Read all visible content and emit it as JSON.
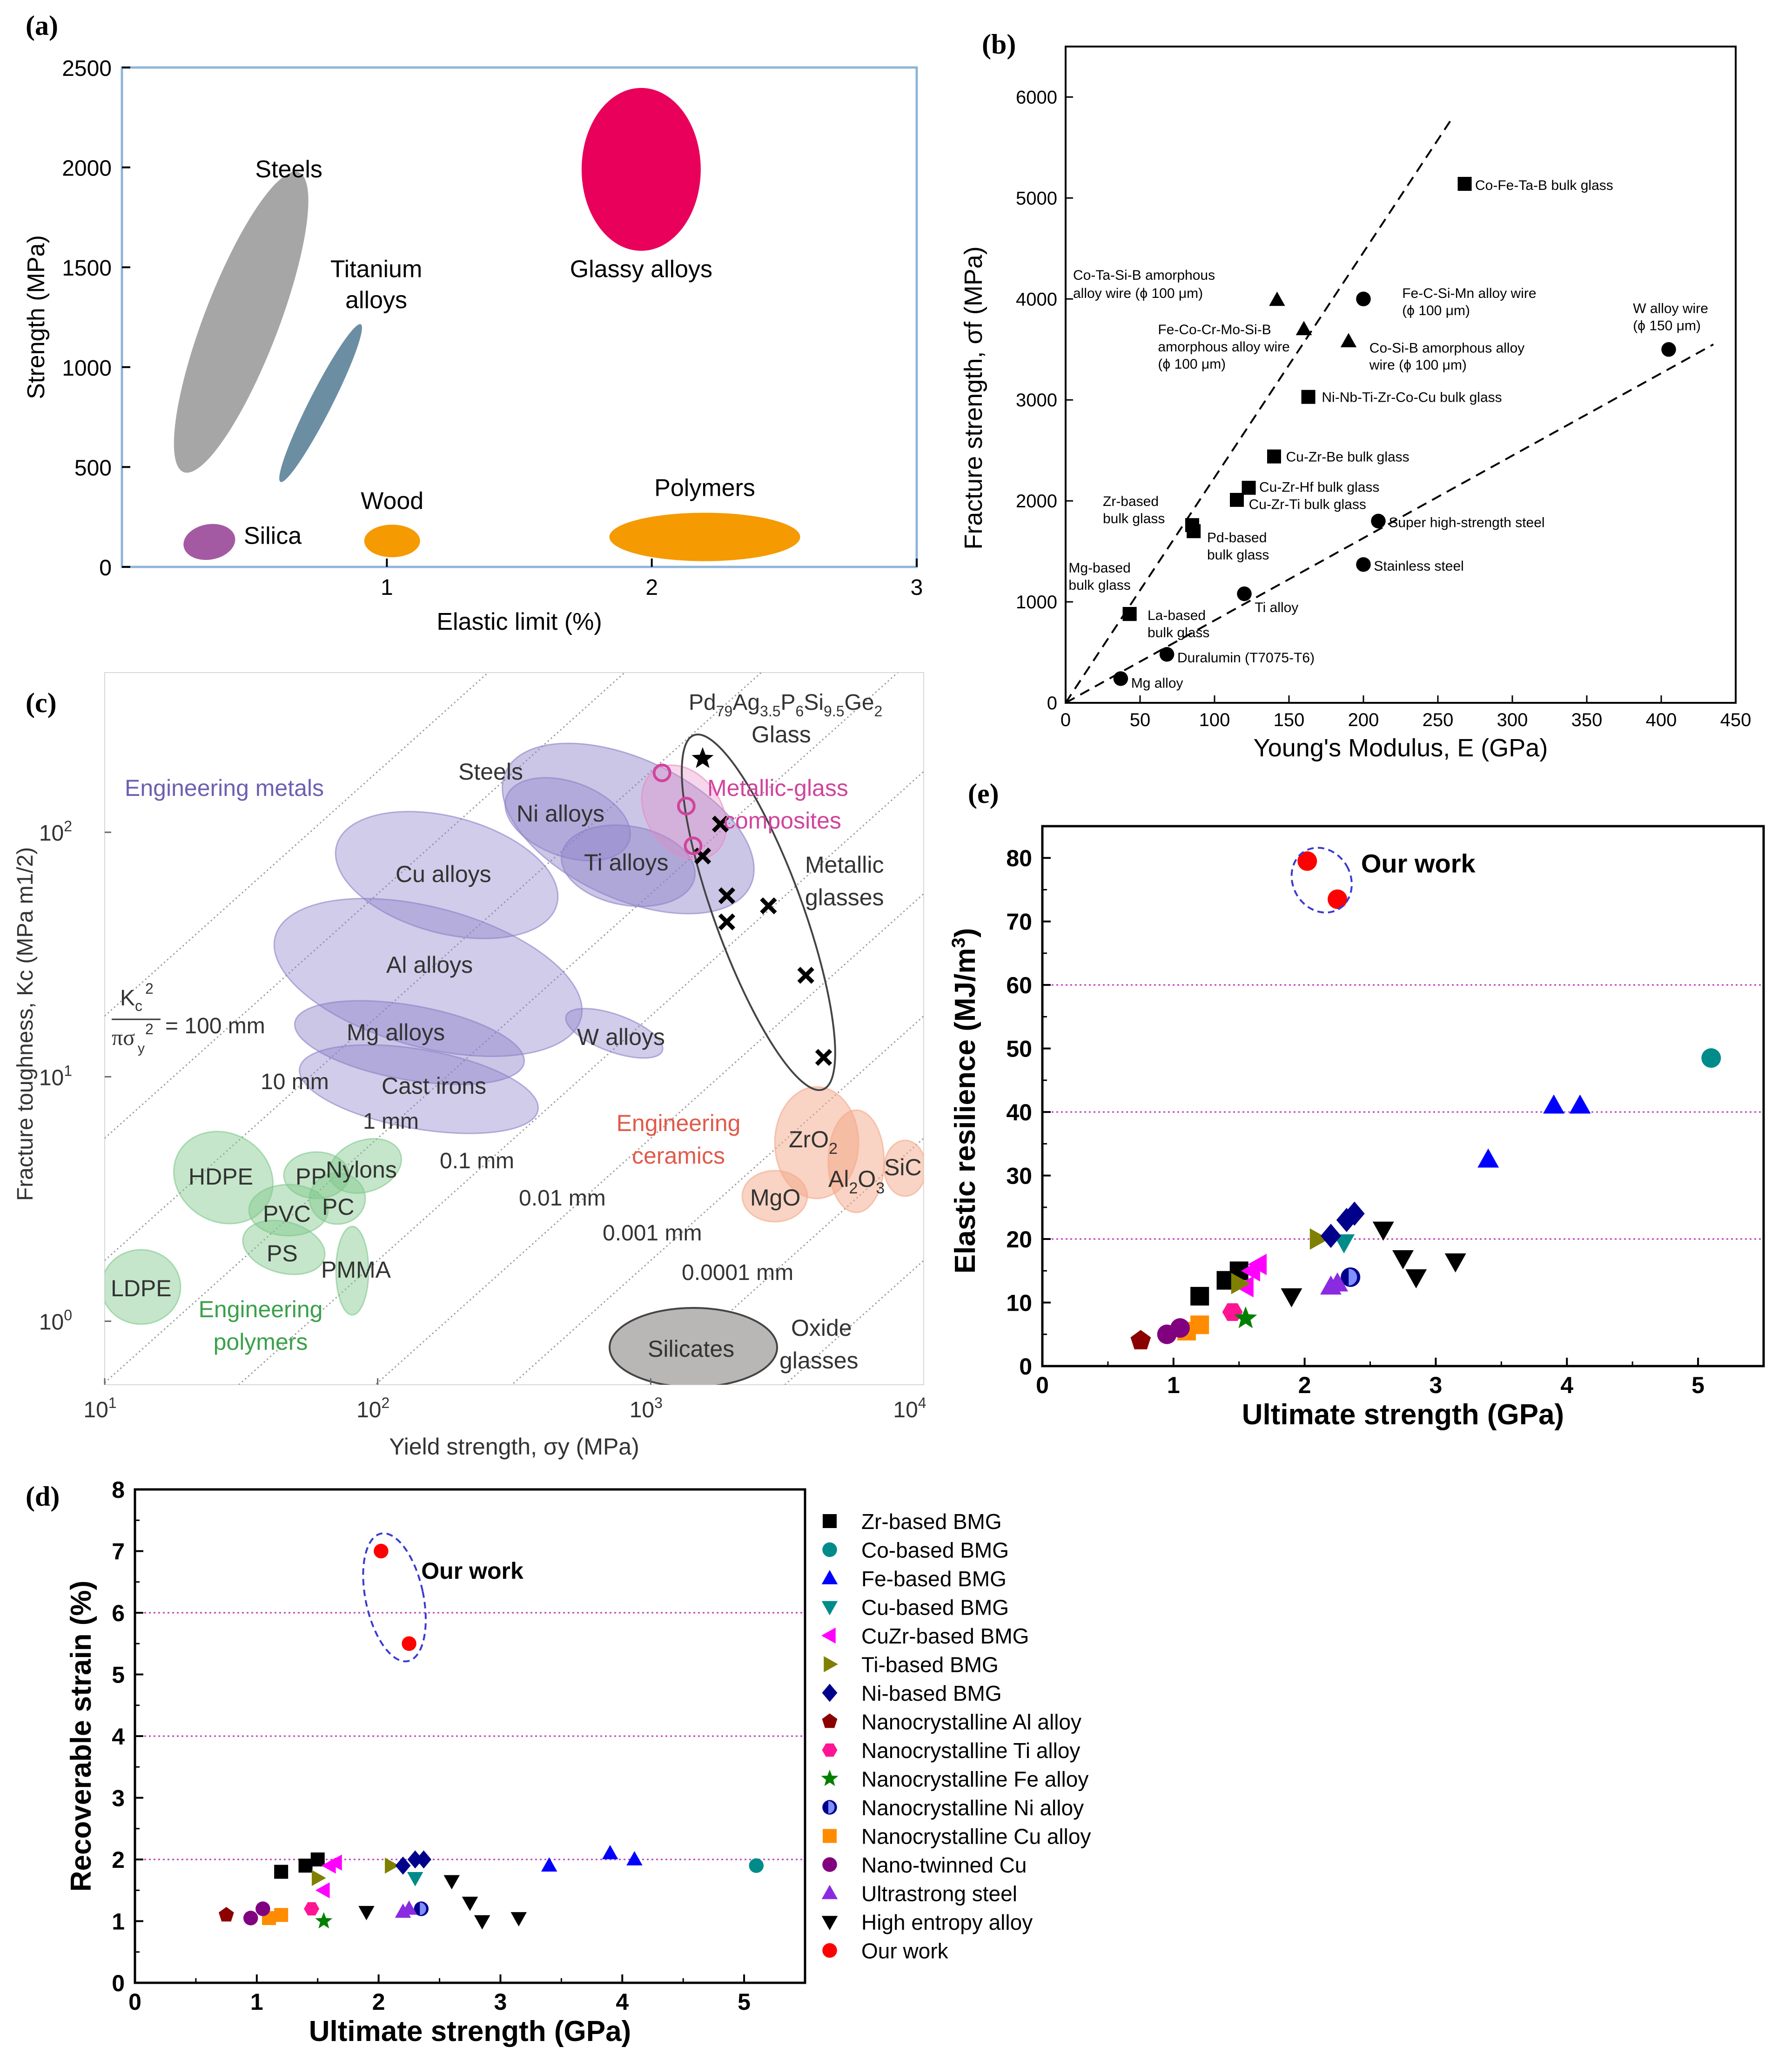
{
  "chart_data": [
    {
      "panel": "a",
      "panel_label": "(a)",
      "type": "region",
      "xlabel": "Elastic limit (%)",
      "ylabel": "Strength (MPa)",
      "xlim": [
        0,
        3
      ],
      "ylim": [
        0,
        2500
      ],
      "xticks": [
        "1",
        "2",
        "3"
      ],
      "x_origin_label": "0",
      "yticks": [
        "0",
        "500",
        "1000",
        "1500",
        "2000",
        "2500"
      ],
      "colors": {
        "frame": "#8fb4d8",
        "steels": "#a6a6a6",
        "titanium": "#6b8ea3",
        "glassy": "#e8005a",
        "silica": "#a45aa2",
        "wood": "#f59a00",
        "polymers": "#f59a00"
      },
      "regions": [
        {
          "name": "Steels",
          "label": "Steels",
          "center": [
            0.45,
            1225
          ],
          "rx_frac": 0.4,
          "color": "#a6a6a6"
        },
        {
          "name": "Titanium alloys",
          "label_line1": "Titanium",
          "label_line2": "alloys",
          "center": [
            0.75,
            820
          ],
          "color": "#6b8ea3"
        },
        {
          "name": "Glassy alloys",
          "label": "Glassy alloys",
          "center": [
            2.0,
            1990
          ],
          "color": "#e8005a"
        },
        {
          "name": "Silica",
          "label": "Silica",
          "center": [
            0.33,
            125
          ],
          "color": "#a45aa2"
        },
        {
          "name": "Wood",
          "label": "Wood",
          "center": [
            1.02,
            130
          ],
          "color": "#f59a00"
        },
        {
          "name": "Polymers",
          "label": "Polymers",
          "center": [
            2.2,
            150
          ],
          "color": "#f59a00"
        }
      ]
    },
    {
      "panel": "b",
      "panel_label": "(b)",
      "type": "scatter",
      "xlabel": "Young's Modulus, E (GPa)",
      "ylabel": "Fracture strength, σf (MPa)",
      "xlim": [
        0,
        450
      ],
      "ylim": [
        0,
        6500
      ],
      "xticks": [
        "0",
        "50",
        "100",
        "150",
        "200",
        "250",
        "300",
        "350",
        "400",
        "450"
      ],
      "yticks": [
        "0",
        "1000",
        "2000",
        "3000",
        "4000",
        "5000",
        "6000"
      ],
      "fit_lines": [
        {
          "x": [
            0,
            260
          ],
          "y": [
            0,
            5800
          ]
        },
        {
          "x": [
            0,
            435
          ],
          "y": [
            0,
            3550
          ]
        }
      ],
      "points": [
        {
          "x": 268,
          "y": 5140,
          "marker": "square",
          "label": "Co-Fe-Ta-B bulk glass"
        },
        {
          "x": 142,
          "y": 3990,
          "marker": "triangle",
          "label": "Co-Ta-Si-B amorphous alloy wire (ϕ 100 μm)"
        },
        {
          "x": 160,
          "y": 3700,
          "marker": "triangle",
          "label": "Fe-Co-Cr-Mo-Si-B amorphous alloy wire (ϕ 100 μm)"
        },
        {
          "x": 190,
          "y": 3580,
          "marker": "triangle",
          "label": ""
        },
        {
          "x": 200,
          "y": 4000,
          "marker": "circle",
          "label": "Fe-C-Si-Mn alloy wire (ϕ 100 μm)"
        },
        {
          "x": 405,
          "y": 3500,
          "marker": "circle",
          "label": "W alloy wire (ϕ 150 μm)"
        },
        {
          "x": 163,
          "y": 3030,
          "marker": "square",
          "label": "Ni-Nb-Ti-Zr-Co-Cu bulk glass"
        },
        {
          "x": 140,
          "y": 2440,
          "marker": "square",
          "label": "Cu-Zr-Be bulk glass"
        },
        {
          "x": 123,
          "y": 2130,
          "marker": "square",
          "label": "Cu-Zr-Hf bulk glass"
        },
        {
          "x": 115,
          "y": 2010,
          "marker": "square",
          "label": "Cu-Zr-Ti bulk glass"
        },
        {
          "x": 85,
          "y": 1760,
          "marker": "square",
          "label": "Zr-based bulk glass"
        },
        {
          "x": 86,
          "y": 1700,
          "marker": "square",
          "label": "Pd-based bulk glass"
        },
        {
          "x": 210,
          "y": 1800,
          "marker": "circle",
          "label": "Super high-strength steel"
        },
        {
          "x": 200,
          "y": 1370,
          "marker": "circle",
          "label": "Stainless steel"
        },
        {
          "x": 120,
          "y": 1080,
          "marker": "circle",
          "label": "Ti alloy"
        },
        {
          "x": 43,
          "y": 880,
          "marker": "square",
          "label": "Mg-based bulk glass"
        },
        {
          "x": 43,
          "y": 880,
          "marker": "square",
          "label": "La-based bulk glass"
        },
        {
          "x": 68,
          "y": 480,
          "marker": "circle",
          "label": "Duralumin (T7075-T6)"
        },
        {
          "x": 37,
          "y": 240,
          "marker": "circle",
          "label": "Mg alloy"
        }
      ],
      "extra_labels": [
        "Co-Si-B amorphous alloy wire (ϕ 100 μm)"
      ]
    },
    {
      "panel": "c",
      "panel_label": "(c)",
      "type": "ashby",
      "xlabel": "Yield strength, σy (MPa)",
      "ylabel": "Fracture toughness, Kc (MPa m1/2)",
      "xscale": "log",
      "yscale": "log",
      "xlim": [
        10,
        10000
      ],
      "ylim": [
        0.55,
        450
      ],
      "xticks": [
        "10",
        "100",
        "1000",
        "10000"
      ],
      "yticks": [
        "1",
        "10",
        "100"
      ],
      "guide_labels": [
        "= 100 mm",
        "10 mm",
        "1 mm",
        "0.1 mm",
        "0.01 mm",
        "0.001 mm",
        "0.0001 mm"
      ],
      "group_labels": {
        "metals": "Engineering metals",
        "polymers_line1": "Engineering",
        "polymers_line2": "polymers",
        "ceramics_line1": "Engineering",
        "ceramics_line2": "ceramics",
        "composites_line1": "Metallic-glass",
        "composites_line2": "composites",
        "mg_line1": "Metallic",
        "mg_line2": "glasses",
        "oxide_line1": "Oxide",
        "oxide_line2": "glasses",
        "pd_formula": "Pd79Ag3.5P6Si9.5Ge2",
        "pd_line2": "Glass"
      },
      "materials": [
        "Steels",
        "Ni alloys",
        "Ti alloys",
        "Cu alloys",
        "Al alloys",
        "Mg alloys",
        "Cast irons",
        "W alloys",
        "HDPE",
        "PP",
        "Nylons",
        "PVC",
        "PC",
        "PS",
        "PMMA",
        "LDPE",
        "ZrO2",
        "MgO",
        "Al2O3",
        "SiC",
        "Silicates"
      ],
      "metallic_glass_points": [
        {
          "sy": 1800,
          "kc": 108
        },
        {
          "sy": 1550,
          "kc": 80
        },
        {
          "sy": 1900,
          "kc": 55
        },
        {
          "sy": 1900,
          "kc": 43
        },
        {
          "sy": 2700,
          "kc": 50
        },
        {
          "sy": 3700,
          "kc": 26
        },
        {
          "sy": 4300,
          "kc": 12
        }
      ],
      "pd_glass_point": {
        "sy": 1550,
        "kc": 200
      },
      "composite_points": [
        {
          "sy": 1100,
          "kc": 175
        },
        {
          "sy": 1350,
          "kc": 128
        },
        {
          "sy": 1430,
          "kc": 88
        }
      ],
      "colors": {
        "metals": "#6d5fb1",
        "polymers": "#3aa04a",
        "ceramics": "#e05a4a",
        "composites": "#d0449c"
      }
    },
    {
      "panel": "d",
      "panel_label": "(d)",
      "type": "scatter",
      "xlabel": "Ultimate strength (GPa)",
      "ylabel": "Recoverable strain (%)",
      "xlim": [
        0,
        5.5
      ],
      "ylim": [
        0,
        8
      ],
      "xticks": [
        "0",
        "1",
        "2",
        "3",
        "4",
        "5"
      ],
      "yticks": [
        "0",
        "1",
        "2",
        "3",
        "4",
        "5",
        "6",
        "7",
        "8"
      ],
      "reference_lines": [
        2,
        4,
        6
      ],
      "annotation": "Our work",
      "series": [
        {
          "name": "Zr-based BMG",
          "marker": "square",
          "color": "#000000",
          "points": [
            [
              1.2,
              1.8
            ],
            [
              1.4,
              1.9
            ],
            [
              1.5,
              2.0
            ]
          ]
        },
        {
          "name": "Co-based BMG",
          "marker": "circle",
          "color": "#008b8b",
          "points": [
            [
              5.1,
              1.9
            ]
          ]
        },
        {
          "name": "Fe-based BMG",
          "marker": "tri-up",
          "color": "#0000ff",
          "points": [
            [
              3.4,
              1.9
            ],
            [
              3.9,
              2.1
            ],
            [
              4.1,
              2.0
            ]
          ]
        },
        {
          "name": "Cu-based BMG",
          "marker": "tri-down",
          "color": "#008b8b",
          "points": [
            [
              2.3,
              1.7
            ]
          ]
        },
        {
          "name": "CuZr-based BMG",
          "marker": "tri-left",
          "color": "#ff00ff",
          "points": [
            [
              1.6,
              1.9
            ],
            [
              1.65,
              1.95
            ],
            [
              1.55,
              1.5
            ]
          ]
        },
        {
          "name": "Ti-based BMG",
          "marker": "tri-right",
          "color": "#808000",
          "points": [
            [
              2.1,
              1.9
            ],
            [
              1.5,
              1.7
            ]
          ]
        },
        {
          "name": "Ni-based BMG",
          "marker": "diamond",
          "color": "#00008b",
          "points": [
            [
              2.2,
              1.9
            ],
            [
              2.3,
              2.0
            ],
            [
              2.37,
              2.0
            ]
          ]
        },
        {
          "name": "Nanocrystalline Al alloy",
          "marker": "pentagon",
          "color": "#8b0000",
          "points": [
            [
              0.75,
              1.1
            ]
          ]
        },
        {
          "name": "Nanocrystalline Ti alloy",
          "marker": "hexagon",
          "color": "#ff1493",
          "points": [
            [
              1.45,
              1.2
            ]
          ]
        },
        {
          "name": "Nanocrystalline Fe alloy",
          "marker": "star",
          "color": "#008000",
          "points": [
            [
              1.55,
              1.0
            ]
          ]
        },
        {
          "name": "Nanocrystalline Ni alloy",
          "marker": "half-circle",
          "color": "#00008b",
          "points": [
            [
              2.35,
              1.2
            ]
          ]
        },
        {
          "name": "Nanocrystalline Cu alloy",
          "marker": "square",
          "color": "#ff8c00",
          "points": [
            [
              1.1,
              1.05
            ],
            [
              1.2,
              1.1
            ]
          ]
        },
        {
          "name": "Nano-twinned Cu",
          "marker": "circle",
          "color": "#800080",
          "points": [
            [
              0.95,
              1.05
            ],
            [
              1.05,
              1.2
            ]
          ]
        },
        {
          "name": "Ultrastrong steel",
          "marker": "tri-up",
          "color": "#8a2be2",
          "points": [
            [
              2.2,
              1.15
            ],
            [
              2.25,
              1.2
            ]
          ]
        },
        {
          "name": "High entropy alloy",
          "marker": "tri-down",
          "color": "#000000",
          "points": [
            [
              1.9,
              1.15
            ],
            [
              2.6,
              1.65
            ],
            [
              2.75,
              1.3
            ],
            [
              2.85,
              1.0
            ],
            [
              3.15,
              1.05
            ]
          ]
        },
        {
          "name": "Our work",
          "marker": "circle",
          "color": "#ff0000",
          "points": [
            [
              2.02,
              7.0
            ],
            [
              2.25,
              5.5
            ]
          ]
        }
      ]
    },
    {
      "panel": "e",
      "panel_label": "(e)",
      "type": "scatter",
      "xlabel": "Ultimate strength (GPa)",
      "ylabel": "Elastic resilience (MJ/m3)",
      "xlim": [
        0,
        5.5
      ],
      "ylim": [
        0,
        85
      ],
      "xticks": [
        "0",
        "1",
        "2",
        "3",
        "4",
        "5"
      ],
      "yticks": [
        "0",
        "10",
        "20",
        "30",
        "40",
        "50",
        "60",
        "70",
        "80"
      ],
      "reference_lines": [
        20,
        40,
        60
      ],
      "annotation": "Our work",
      "series": [
        {
          "name": "Zr-based BMG",
          "marker": "square",
          "color": "#000000",
          "points": [
            [
              1.2,
              11
            ],
            [
              1.4,
              13.5
            ],
            [
              1.5,
              15
            ]
          ]
        },
        {
          "name": "Co-based BMG",
          "marker": "circle",
          "color": "#008b8b",
          "points": [
            [
              5.1,
              48.5
            ]
          ]
        },
        {
          "name": "Fe-based BMG",
          "marker": "tri-up",
          "color": "#0000ff",
          "points": [
            [
              3.4,
              32.5
            ],
            [
              3.9,
              41
            ],
            [
              4.1,
              41
            ]
          ]
        },
        {
          "name": "Cu-based BMG",
          "marker": "tri-down",
          "color": "#008b8b",
          "points": [
            [
              2.3,
              19.5
            ]
          ]
        },
        {
          "name": "CuZr-based BMG",
          "marker": "tri-left",
          "color": "#ff00ff",
          "points": [
            [
              1.65,
              16
            ],
            [
              1.6,
              15
            ],
            [
              1.55,
              12.5
            ]
          ]
        },
        {
          "name": "Ti-based BMG",
          "marker": "tri-right",
          "color": "#808000",
          "points": [
            [
              2.1,
              20
            ],
            [
              1.5,
              13
            ]
          ]
        },
        {
          "name": "Ni-based BMG",
          "marker": "diamond",
          "color": "#00008b",
          "points": [
            [
              2.2,
              20.5
            ],
            [
              2.32,
              23
            ],
            [
              2.38,
              24
            ]
          ]
        },
        {
          "name": "Nanocrystalline Al alloy",
          "marker": "pentagon",
          "color": "#8b0000",
          "points": [
            [
              0.75,
              4
            ]
          ]
        },
        {
          "name": "Nanocrystalline Ti alloy",
          "marker": "hexagon",
          "color": "#ff1493",
          "points": [
            [
              1.45,
              8.5
            ]
          ]
        },
        {
          "name": "Nanocrystalline Fe alloy",
          "marker": "star",
          "color": "#008000",
          "points": [
            [
              1.55,
              7.5
            ]
          ]
        },
        {
          "name": "Nanocrystalline Ni alloy",
          "marker": "half-circle",
          "color": "#00008b",
          "points": [
            [
              2.35,
              14
            ]
          ]
        },
        {
          "name": "Nanocrystalline Cu alloy",
          "marker": "square",
          "color": "#ff8c00",
          "points": [
            [
              1.1,
              5.5
            ],
            [
              1.2,
              6.5
            ]
          ]
        },
        {
          "name": "Nano-twinned Cu",
          "marker": "circle",
          "color": "#800080",
          "points": [
            [
              0.95,
              5
            ],
            [
              1.05,
              6
            ]
          ]
        },
        {
          "name": "Ultrastrong steel",
          "marker": "tri-up",
          "color": "#8a2be2",
          "points": [
            [
              2.2,
              12.5
            ],
            [
              2.25,
              13
            ]
          ]
        },
        {
          "name": "High entropy alloy",
          "marker": "tri-down",
          "color": "#000000",
          "points": [
            [
              1.9,
              11
            ],
            [
              2.6,
              21.5
            ],
            [
              2.75,
              17
            ],
            [
              2.85,
              14
            ],
            [
              3.15,
              16.5
            ]
          ]
        },
        {
          "name": "Our work",
          "marker": "circle",
          "color": "#ff0000",
          "points": [
            [
              2.02,
              79.5
            ],
            [
              2.25,
              73.5
            ]
          ]
        }
      ]
    }
  ]
}
